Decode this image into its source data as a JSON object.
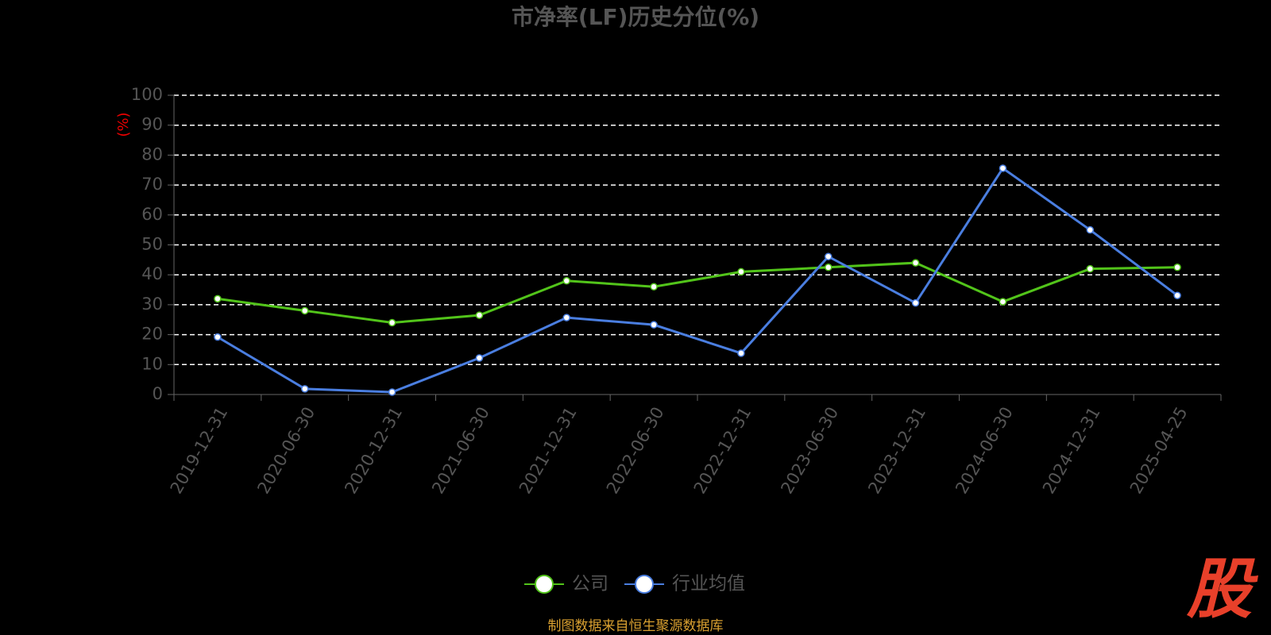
{
  "chart_data": {
    "type": "line",
    "title": "市净率(LF)历史分位(%)",
    "y_label": "(%)",
    "categories": [
      "2019-12-31",
      "2020-06-30",
      "2020-12-31",
      "2021-06-30",
      "2021-12-31",
      "2022-06-30",
      "2022-12-31",
      "2023-06-30",
      "2023-12-31",
      "2024-06-30",
      "2024-12-31",
      "2025-04-25"
    ],
    "series": [
      {
        "name": "公司",
        "color": "#52c41a",
        "values": [
          32,
          28,
          24,
          26.5,
          38,
          36,
          41,
          42.5,
          44,
          31,
          42,
          42.5
        ]
      },
      {
        "name": "行业均值",
        "color": "#4a7ee0",
        "values": [
          19.2,
          1.9,
          0.8,
          12.2,
          25.7,
          23.3,
          13.8,
          46.1,
          30.6,
          75.6,
          55,
          33.1
        ]
      }
    ],
    "ylim": [
      0,
      100
    ],
    "yticks": [
      0,
      10,
      20,
      30,
      40,
      50,
      60,
      70,
      80,
      90,
      100
    ],
    "grid": true,
    "legend": "bottom",
    "source": "制图数据来自恒生聚源数据库",
    "logo": "股"
  }
}
